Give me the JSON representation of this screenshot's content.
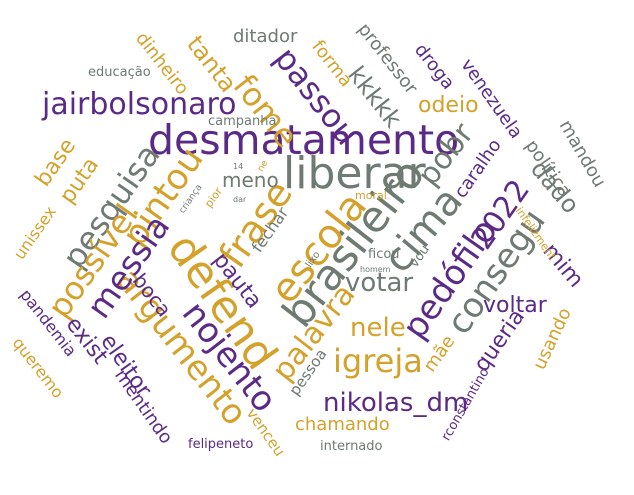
{
  "palette": {
    "purple": "#5b2a86",
    "gold": "#d4a22b",
    "gray": "#6f7a72"
  },
  "words": [
    "desmatamento",
    "brasileiro",
    "liberar",
    "defend",
    "escola",
    "frase",
    "pintou",
    "nojento",
    "argumento",
    "igreja",
    "cima",
    "pedófilo",
    "consegu",
    "2022",
    "jairbolsonaro",
    "messia",
    "pesquisa",
    "possível",
    "fome",
    "passou",
    "palavra",
    "nikolas_dm",
    "votar",
    "pobr",
    "nele",
    "kkkkk",
    "odeio",
    "voltar",
    "dado",
    "tanta",
    "queria",
    "mim",
    "eleitor",
    "exist",
    "boca",
    "pauta",
    "puta",
    "base",
    "venezuela",
    "chamando",
    "mentindo",
    "meno",
    "política",
    "mandou",
    "usando",
    "mãe",
    "professor",
    "droga",
    "caralho",
    "forma",
    "dinheiro",
    "ditador",
    "fechar",
    "pessoa",
    "queremo",
    "pandemia",
    "unissex",
    "venceu",
    "internado",
    "felipeneto",
    "rconstantino",
    "educação",
    "campanha",
    "ficou",
    "vou",
    "infelizment",
    "moral",
    "criança",
    "pior",
    "lixo",
    "homem",
    "dar",
    "14",
    "ne"
  ]
}
